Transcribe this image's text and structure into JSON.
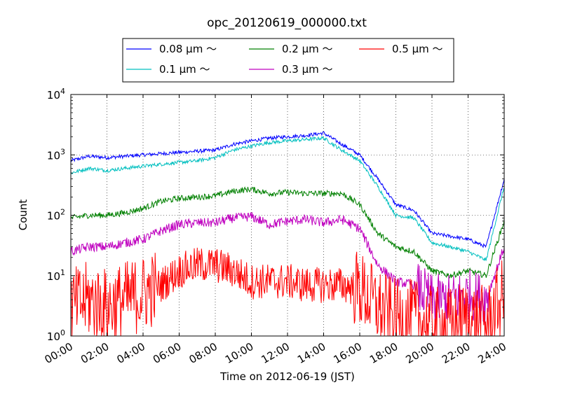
{
  "chart_data": {
    "type": "line",
    "title": "opc_20120619_000000.txt",
    "xlabel": "Time on 2012-06-19 (JST)",
    "ylabel": "Count",
    "y_scale": "log",
    "ylim": [
      1,
      10000
    ],
    "xlim": [
      "00:00",
      "24:00"
    ],
    "x_ticks": [
      "00:00",
      "02:00",
      "04:00",
      "06:00",
      "08:00",
      "10:00",
      "12:00",
      "14:00",
      "16:00",
      "18:00",
      "20:00",
      "22:00",
      "24:00"
    ],
    "y_ticks": [
      {
        "base": "10",
        "exp": "0"
      },
      {
        "base": "10",
        "exp": "1"
      },
      {
        "base": "10",
        "exp": "2"
      },
      {
        "base": "10",
        "exp": "3"
      },
      {
        "base": "10",
        "exp": "4"
      }
    ],
    "grid": true,
    "legend_position": "above plot",
    "x_hours": [
      0,
      1,
      2,
      3,
      4,
      5,
      6,
      7,
      8,
      9,
      10,
      11,
      12,
      13,
      14,
      15,
      16,
      17,
      18,
      19,
      20,
      21,
      22,
      23,
      24
    ],
    "series": [
      {
        "name": "0.08 μm ～",
        "color": "#0000ff",
        "values": [
          800,
          950,
          900,
          950,
          1000,
          1050,
          1100,
          1150,
          1200,
          1500,
          1700,
          1900,
          2000,
          2100,
          2300,
          1500,
          1000,
          400,
          150,
          120,
          50,
          45,
          40,
          30,
          400
        ]
      },
      {
        "name": "0.1 μm ～",
        "color": "#00bfbf",
        "values": [
          500,
          600,
          550,
          600,
          650,
          700,
          750,
          800,
          900,
          1200,
          1400,
          1600,
          1700,
          1800,
          1900,
          1200,
          800,
          300,
          100,
          90,
          35,
          30,
          25,
          18,
          300
        ]
      },
      {
        "name": "0.2 μm ～",
        "color": "#008000",
        "values": [
          90,
          100,
          100,
          110,
          130,
          170,
          190,
          200,
          210,
          250,
          270,
          230,
          240,
          230,
          230,
          230,
          150,
          50,
          30,
          25,
          12,
          10,
          12,
          10,
          80
        ]
      },
      {
        "name": "0.3 μm ～",
        "color": "#bf00bf",
        "values": [
          25,
          30,
          30,
          35,
          40,
          55,
          70,
          75,
          75,
          90,
          95,
          70,
          80,
          85,
          75,
          85,
          60,
          15,
          8,
          7,
          4,
          4,
          5,
          4,
          30
        ]
      },
      {
        "name": "0.5 μm ～",
        "color": "#ff0000",
        "values": [
          3,
          4,
          3,
          4,
          5,
          7,
          12,
          15,
          15,
          12,
          8,
          8,
          8,
          7,
          7,
          7,
          6,
          3,
          2,
          2,
          1.5,
          1.5,
          2,
          1.5,
          5
        ]
      }
    ]
  }
}
